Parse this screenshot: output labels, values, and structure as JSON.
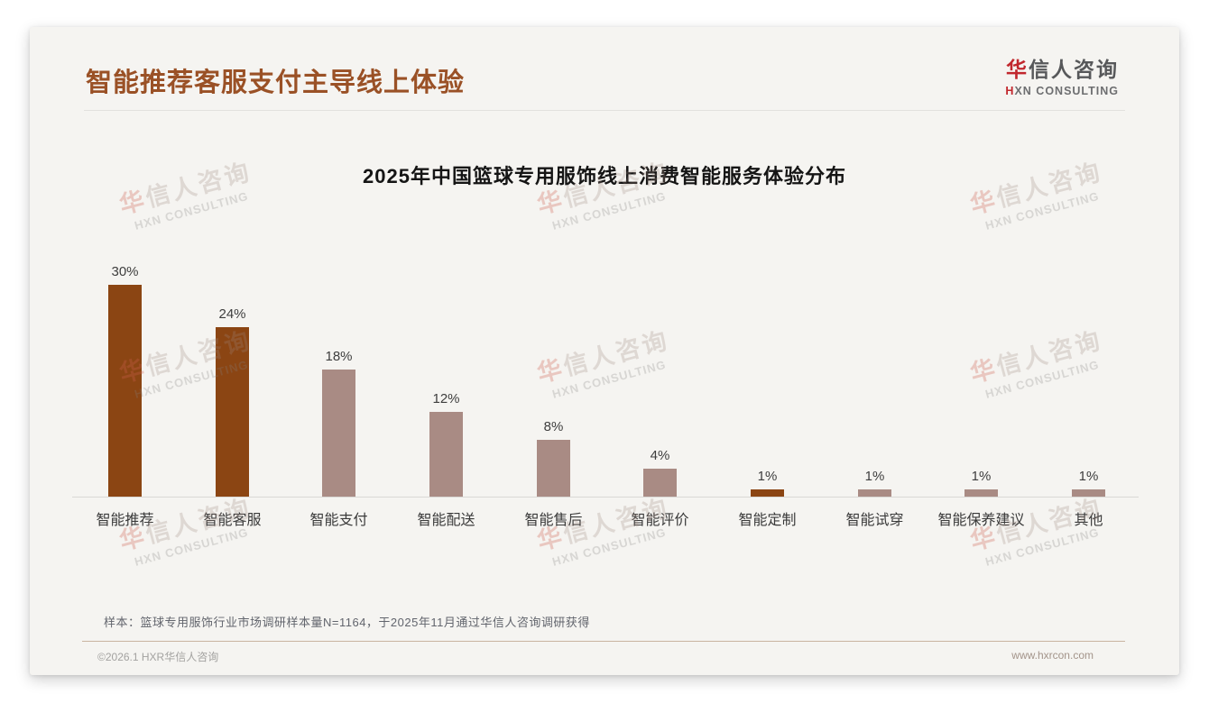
{
  "slide": {
    "header": {
      "title": "智能推荐客服支付主导线上体验",
      "logo": {
        "cn_accent": "华",
        "cn_rest": "信人咨询",
        "en_accent": "H",
        "en_rest": "XN CONSULTING"
      }
    },
    "watermark": {
      "cn_accent": "华",
      "cn_rest": "信人咨询",
      "en": "HXN CONSULTING"
    },
    "footer": {
      "sample_note": "样本：篮球专用服饰行业市场调研样本量N=1164，于2025年11月通过华信人咨询调研获得",
      "copyright": "©2026.1 HXR华信人咨询",
      "website": "www.hxrcon.com"
    },
    "theme": {
      "title_brown": "#9a5126",
      "bar_dark": "#8B4513",
      "bar_light": "#A98B84",
      "logo_red": "#c1272d",
      "slide_bg": "#f5f4f1"
    }
  },
  "chart_data": {
    "type": "bar",
    "title": "2025年中国篮球专用服饰线上消费智能服务体验分布",
    "categories": [
      "智能推荐",
      "智能客服",
      "智能支付",
      "智能配送",
      "智能售后",
      "智能评价",
      "智能定制",
      "智能试穿",
      "智能保养建议",
      "其他"
    ],
    "values": [
      30,
      24,
      18,
      12,
      8,
      4,
      1,
      1,
      1,
      1
    ],
    "data_labels": [
      "30%",
      "24%",
      "18%",
      "12%",
      "8%",
      "4%",
      "1%",
      "1%",
      "1%",
      "1%"
    ],
    "unit": "%",
    "bar_colors": [
      "#8B4513",
      "#8B4513",
      "#A98B84",
      "#A98B84",
      "#A98B84",
      "#A98B84",
      "#8B4513",
      "#A98B84",
      "#A98B84",
      "#A98B84"
    ],
    "xlabel": "",
    "ylabel": "",
    "ylim": [
      0,
      32
    ],
    "grid": false,
    "legend": false
  }
}
